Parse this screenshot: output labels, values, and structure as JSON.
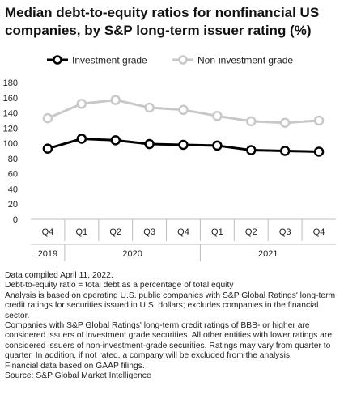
{
  "title": "Median debt-to-equity ratios for nonfinancial US companies, by S&P long-term issuer rating (%)",
  "colors": {
    "investment": "#000000",
    "noninvestment": "#c8c8c8",
    "axis": "#bdbdbd"
  },
  "chart_data": {
    "type": "line",
    "title": "Median debt-to-equity ratios for nonfinancial US companies, by S&P long-term issuer rating (%)",
    "categories": [
      "Q4",
      "Q1",
      "Q2",
      "Q3",
      "Q4",
      "Q1",
      "Q2",
      "Q3",
      "Q4"
    ],
    "years": [
      {
        "label": "2019",
        "span": 1
      },
      {
        "label": "2020",
        "span": 4
      },
      {
        "label": "2021",
        "span": 4
      }
    ],
    "series": [
      {
        "name": "Investment grade",
        "values": [
          93,
          106,
          104,
          99,
          98,
          97,
          91,
          90,
          89
        ],
        "color": "#000000"
      },
      {
        "name": "Non-investment grade",
        "values": [
          133,
          152,
          157,
          147,
          144,
          136,
          129,
          127,
          130
        ],
        "color": "#c8c8c8"
      }
    ],
    "yticks": [
      0,
      20,
      40,
      60,
      80,
      100,
      120,
      140,
      160,
      180
    ],
    "ylim": [
      0,
      180
    ],
    "legend": "top",
    "grid": false,
    "xlabel": "",
    "ylabel": ""
  },
  "notes": [
    "Data compiled April 11, 2022.",
    "Debt-to-equity ratio = total debt as a percentage of total equity",
    "Analysis is based on operating U.S. public companies with S&P Global Ratings' long-term credit ratings for securities issued in U.S. dollars; excludes companies in the financial sector.",
    "Companies with S&P Global Ratings' long-term credit ratings of BBB- or higher are considered issuers of investment grade securities. All other entities with lower ratings are considered issuers of non-investment-grade securities. Ratings may vary from quarter to quarter. In addition, if not rated, a company will be excluded from the analysis.",
    "Financial data based on GAAP filings.",
    "Source: S&P Global Market Intelligence"
  ]
}
